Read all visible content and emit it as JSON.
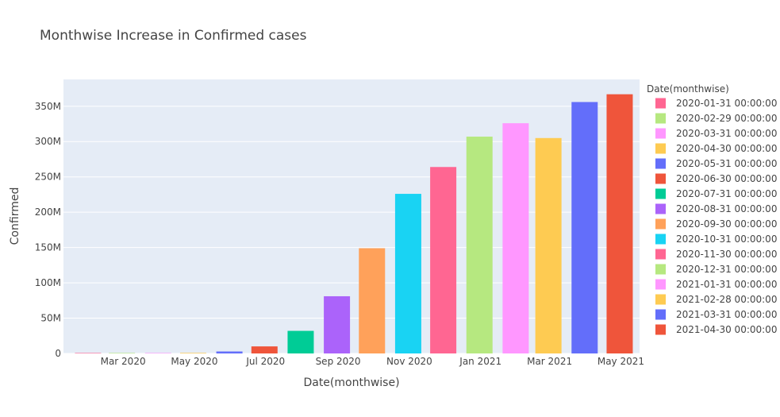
{
  "chart_data": {
    "type": "bar",
    "title": "Monthwise Increase in Confirmed cases",
    "xlabel": "Date(monthwise)",
    "ylabel": "Confirmed",
    "legend_title": "Date(monthwise)",
    "legend_position": "right",
    "grid": true,
    "ylim": [
      0,
      388000000
    ],
    "xlim": [
      "2020-01-10",
      "2021-05-17"
    ],
    "x_ticks": [
      {
        "date": "2020-03-01",
        "label": "Mar 2020"
      },
      {
        "date": "2020-05-01",
        "label": "May 2020"
      },
      {
        "date": "2020-07-01",
        "label": "Jul 2020"
      },
      {
        "date": "2020-09-01",
        "label": "Sep 2020"
      },
      {
        "date": "2020-11-01",
        "label": "Nov 2020"
      },
      {
        "date": "2021-01-01",
        "label": "Jan 2021"
      },
      {
        "date": "2021-03-01",
        "label": "Mar 2021"
      },
      {
        "date": "2021-05-01",
        "label": "May 2021"
      }
    ],
    "y_ticks": [
      {
        "value": 0,
        "label": "0"
      },
      {
        "value": 50000000,
        "label": "50M"
      },
      {
        "value": 100000000,
        "label": "100M"
      },
      {
        "value": 150000000,
        "label": "150M"
      },
      {
        "value": 200000000,
        "label": "200M"
      },
      {
        "value": 250000000,
        "label": "250M"
      },
      {
        "value": 300000000,
        "label": "300M"
      },
      {
        "value": 350000000,
        "label": "350M"
      }
    ],
    "series": [
      {
        "name": "2020-01-31 00:00:00",
        "x": "2020-01-31",
        "value": 1000,
        "color": "#FF6692"
      },
      {
        "name": "2020-02-29 00:00:00",
        "x": "2020-02-29",
        "value": 60000,
        "color": "#B6E880"
      },
      {
        "name": "2020-03-31 00:00:00",
        "x": "2020-03-31",
        "value": 200000,
        "color": "#FF97FF"
      },
      {
        "name": "2020-04-30 00:00:00",
        "x": "2020-04-30",
        "value": 800000,
        "color": "#FECB52"
      },
      {
        "name": "2020-05-31 00:00:00",
        "x": "2020-05-31",
        "value": 2800000,
        "color": "#636EFA"
      },
      {
        "name": "2020-06-30 00:00:00",
        "x": "2020-06-30",
        "value": 10000000,
        "color": "#EF553B"
      },
      {
        "name": "2020-07-31 00:00:00",
        "x": "2020-07-31",
        "value": 32000000,
        "color": "#00CC96"
      },
      {
        "name": "2020-08-31 00:00:00",
        "x": "2020-08-31",
        "value": 81000000,
        "color": "#AB63FA"
      },
      {
        "name": "2020-09-30 00:00:00",
        "x": "2020-09-30",
        "value": 149000000,
        "color": "#FFA15A"
      },
      {
        "name": "2020-10-31 00:00:00",
        "x": "2020-10-31",
        "value": 226000000,
        "color": "#19D3F3"
      },
      {
        "name": "2020-11-30 00:00:00",
        "x": "2020-11-30",
        "value": 264000000,
        "color": "#FF6692"
      },
      {
        "name": "2020-12-31 00:00:00",
        "x": "2020-12-31",
        "value": 307000000,
        "color": "#B6E880"
      },
      {
        "name": "2021-01-31 00:00:00",
        "x": "2021-01-31",
        "value": 326000000,
        "color": "#FF97FF"
      },
      {
        "name": "2021-02-28 00:00:00",
        "x": "2021-02-28",
        "value": 305000000,
        "color": "#FECB52"
      },
      {
        "name": "2021-03-31 00:00:00",
        "x": "2021-03-31",
        "value": 356000000,
        "color": "#636EFA"
      },
      {
        "name": "2021-04-30 00:00:00",
        "x": "2021-04-30",
        "value": 367000000,
        "color": "#EF553B"
      }
    ]
  }
}
